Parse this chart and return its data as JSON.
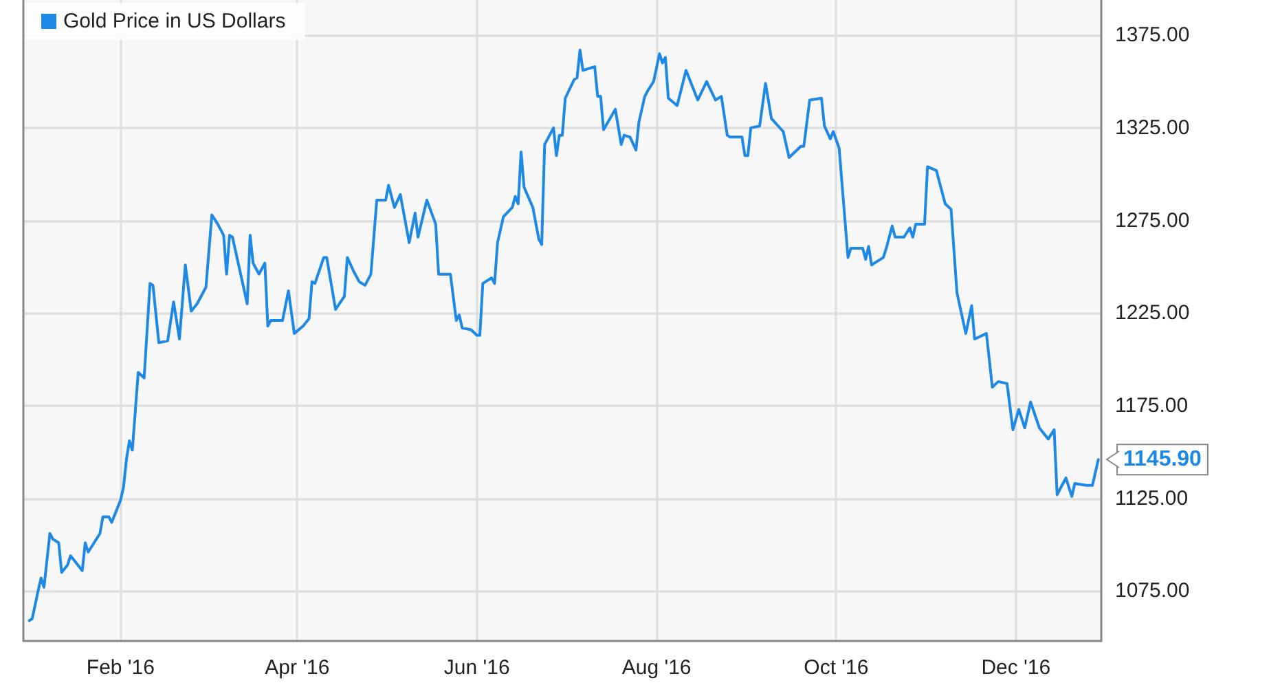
{
  "chart_data": {
    "type": "line",
    "legend": "top left",
    "grid": true,
    "marker": "none",
    "line_style": "solid",
    "xlim": [
      "2015-12-30",
      "2016-12-30"
    ],
    "xticks": [
      {
        "value": "2016-02-01",
        "label": "Feb '16"
      },
      {
        "value": "2016-04-01",
        "label": "Apr '16"
      },
      {
        "value": "2016-06-01",
        "label": "Jun '16"
      },
      {
        "value": "2016-08-01",
        "label": "Aug '16"
      },
      {
        "value": "2016-10-01",
        "label": "Oct '16"
      },
      {
        "value": "2016-12-01",
        "label": "Dec '16"
      }
    ],
    "ylim": [
      1048,
      1394
    ],
    "yticks": [
      {
        "value": 1075,
        "label": "1075.00"
      },
      {
        "value": 1125,
        "label": "1125.00"
      },
      {
        "value": 1175,
        "label": "1175.00"
      },
      {
        "value": 1225,
        "label": "1225.00"
      },
      {
        "value": 1275,
        "label": "1275.00"
      },
      {
        "value": 1325,
        "label": "1325.00"
      },
      {
        "value": 1375,
        "label": "1375.00"
      }
    ],
    "annotations": [
      {
        "text": "1145.90",
        "x": "2016-12-29",
        "y": 1145.9
      }
    ],
    "x": [
      "2016-01-01",
      "2016-01-02",
      "2016-01-04",
      "2016-01-05",
      "2016-01-06",
      "2016-01-08",
      "2016-01-09",
      "2016-01-11",
      "2016-01-12",
      "2016-01-14",
      "2016-01-15",
      "2016-01-19",
      "2016-01-20",
      "2016-01-21",
      "2016-01-23",
      "2016-01-25",
      "2016-01-26",
      "2016-01-28",
      "2016-01-29",
      "2016-02-01",
      "2016-02-02",
      "2016-02-03",
      "2016-02-04",
      "2016-02-05",
      "2016-02-07",
      "2016-02-09",
      "2016-02-11",
      "2016-02-12",
      "2016-02-14",
      "2016-02-17",
      "2016-02-19",
      "2016-02-21",
      "2016-02-23",
      "2016-02-25",
      "2016-02-27",
      "2016-03-01",
      "2016-03-03",
      "2016-03-05",
      "2016-03-07",
      "2016-03-08",
      "2016-03-09",
      "2016-03-10",
      "2016-03-15",
      "2016-03-16",
      "2016-03-17",
      "2016-03-19",
      "2016-03-21",
      "2016-03-22",
      "2016-03-23",
      "2016-03-27",
      "2016-03-29",
      "2016-03-31",
      "2016-04-03",
      "2016-04-05",
      "2016-04-06",
      "2016-04-07",
      "2016-04-10",
      "2016-04-11",
      "2016-04-14",
      "2016-04-17",
      "2016-04-18",
      "2016-04-20",
      "2016-04-22",
      "2016-04-24",
      "2016-04-26",
      "2016-04-28",
      "2016-05-01",
      "2016-05-02",
      "2016-05-04",
      "2016-05-06",
      "2016-05-09",
      "2016-05-11",
      "2016-05-12",
      "2016-05-15",
      "2016-05-18",
      "2016-05-19",
      "2016-05-23",
      "2016-05-25",
      "2016-05-26",
      "2016-05-27",
      "2016-05-30",
      "2016-06-01",
      "2016-06-02",
      "2016-06-03",
      "2016-06-06",
      "2016-06-07",
      "2016-06-08",
      "2016-06-10",
      "2016-06-13",
      "2016-06-14",
      "2016-06-15",
      "2016-06-16",
      "2016-06-17",
      "2016-06-20",
      "2016-06-22",
      "2016-06-23",
      "2016-06-24",
      "2016-06-27",
      "2016-06-28",
      "2016-06-29",
      "2016-06-30",
      "2016-07-01",
      "2016-07-04",
      "2016-07-05",
      "2016-07-06",
      "2016-07-07",
      "2016-07-09",
      "2016-07-11",
      "2016-07-12",
      "2016-07-13",
      "2016-07-14",
      "2016-07-18",
      "2016-07-20",
      "2016-07-21",
      "2016-07-23",
      "2016-07-25",
      "2016-07-26",
      "2016-07-28",
      "2016-07-29",
      "2016-07-31",
      "2016-08-02",
      "2016-08-03",
      "2016-08-04",
      "2016-08-05",
      "2016-08-08",
      "2016-08-11",
      "2016-08-15",
      "2016-08-18",
      "2016-08-21",
      "2016-08-23",
      "2016-08-25",
      "2016-08-26",
      "2016-08-30",
      "2016-08-31",
      "2016-09-01",
      "2016-09-02",
      "2016-09-05",
      "2016-09-07",
      "2016-09-09",
      "2016-09-13",
      "2016-09-15",
      "2016-09-19",
      "2016-09-20",
      "2016-09-22",
      "2016-09-26",
      "2016-09-27",
      "2016-09-29",
      "2016-09-30",
      "2016-10-02",
      "2016-10-05",
      "2016-10-06",
      "2016-10-10",
      "2016-10-11",
      "2016-10-12",
      "2016-10-13",
      "2016-10-17",
      "2016-10-18",
      "2016-10-20",
      "2016-10-21",
      "2016-10-24",
      "2016-10-26",
      "2016-10-27",
      "2016-10-28",
      "2016-10-31",
      "2016-11-01",
      "2016-11-04",
      "2016-11-07",
      "2016-11-09",
      "2016-11-11",
      "2016-11-14",
      "2016-11-16",
      "2016-11-17",
      "2016-11-21",
      "2016-11-23",
      "2016-11-25",
      "2016-11-28",
      "2016-11-30",
      "2016-12-02",
      "2016-12-04",
      "2016-12-06",
      "2016-12-09",
      "2016-12-12",
      "2016-12-14",
      "2016-12-15",
      "2016-12-18",
      "2016-12-20",
      "2016-12-21",
      "2016-12-25",
      "2016-12-27",
      "2016-12-29"
    ],
    "series": [
      {
        "name": "Gold Price in US Dollars",
        "color": "#1e88e5",
        "values": [
          1059,
          1060,
          1075,
          1082,
          1077,
          1106,
          1103,
          1101,
          1085,
          1089,
          1094,
          1086,
          1101,
          1096,
          1101,
          1106,
          1115,
          1115,
          1112,
          1124,
          1131,
          1146,
          1156,
          1151,
          1193,
          1190,
          1241,
          1240,
          1209,
          1210,
          1231,
          1211,
          1251,
          1226,
          1230,
          1239,
          1278,
          1273,
          1267,
          1246,
          1267,
          1266,
          1230,
          1267,
          1252,
          1246,
          1252,
          1218,
          1221,
          1221,
          1237,
          1214,
          1218,
          1222,
          1242,
          1241,
          1255,
          1255,
          1227,
          1234,
          1255,
          1248,
          1242,
          1240,
          1246,
          1286,
          1286,
          1294,
          1282,
          1289,
          1263,
          1279,
          1266,
          1286,
          1273,
          1246,
          1246,
          1221,
          1224,
          1217,
          1216,
          1213,
          1213,
          1241,
          1244,
          1241,
          1263,
          1277,
          1282,
          1288,
          1284,
          1312,
          1293,
          1282,
          1265,
          1262,
          1316,
          1325,
          1310,
          1321,
          1321,
          1341,
          1351,
          1352,
          1367,
          1356,
          1357,
          1358,
          1342,
          1342,
          1324,
          1335,
          1316,
          1321,
          1320,
          1313,
          1328,
          1342,
          1345,
          1350,
          1365,
          1360,
          1363,
          1341,
          1337,
          1356,
          1340,
          1350,
          1340,
          1342,
          1321,
          1320,
          1320,
          1310,
          1310,
          1325,
          1326,
          1349,
          1330,
          1323,
          1309,
          1315,
          1315,
          1340,
          1341,
          1326,
          1319,
          1323,
          1314,
          1255,
          1260,
          1260,
          1254,
          1261,
          1251,
          1255,
          1260,
          1272,
          1266,
          1266,
          1271,
          1266,
          1273,
          1273,
          1304,
          1302,
          1284,
          1281,
          1236,
          1214,
          1229,
          1211,
          1214,
          1185,
          1188,
          1187,
          1162,
          1173,
          1163,
          1177,
          1163,
          1157,
          1162,
          1127,
          1136,
          1126,
          1133,
          1132,
          1132,
          1145.9
        ]
      }
    ]
  }
}
